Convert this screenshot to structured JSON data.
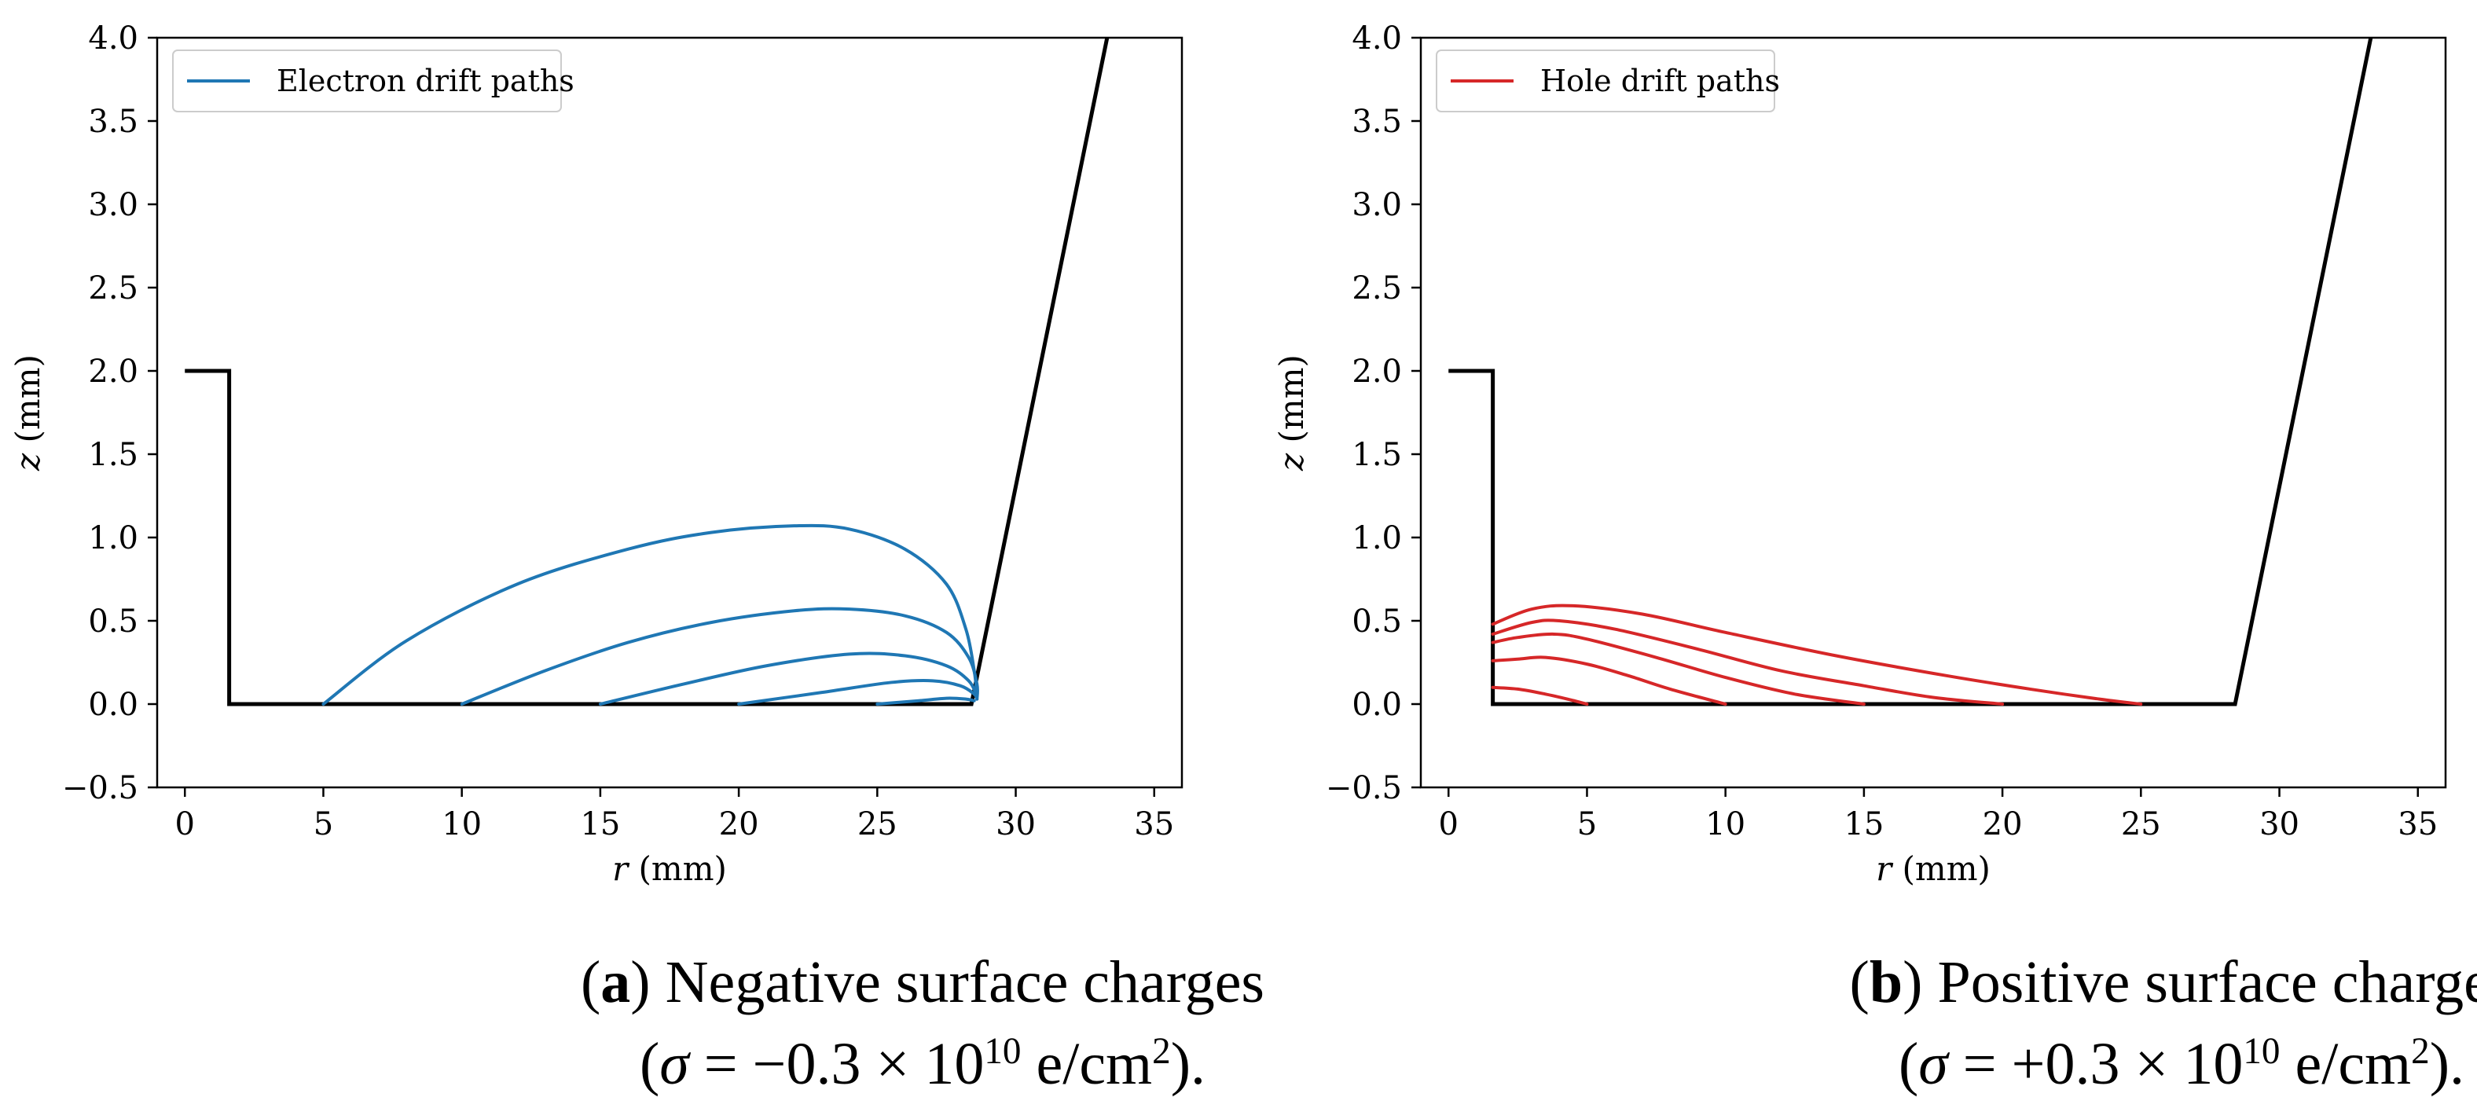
{
  "chart_data": [
    {
      "type": "line",
      "xlabel_var": "r",
      "xlabel_unit": "(mm)",
      "ylabel_var": "z",
      "ylabel_unit": "(mm)",
      "xlim": [
        -1,
        36
      ],
      "ylim": [
        -0.5,
        4.0
      ],
      "xticks": [
        0,
        5,
        10,
        15,
        20,
        25,
        30,
        35
      ],
      "yticks": [
        -0.5,
        0.0,
        0.5,
        1.0,
        1.5,
        2.0,
        2.5,
        3.0,
        3.5,
        4.0
      ],
      "ytick_labels": [
        "−0.5",
        "0.0",
        "0.5",
        "1.0",
        "1.5",
        "2.0",
        "2.5",
        "3.0",
        "3.5",
        "4.0"
      ],
      "grid": false,
      "legend": {
        "placement": "top-left",
        "entries": [
          {
            "label": "Electron drift paths",
            "color": "#1f77b4"
          }
        ]
      },
      "boundary": {
        "color": "#000000",
        "points": [
          [
            0,
            2.0
          ],
          [
            1.6,
            2.0
          ],
          [
            1.6,
            0.0
          ],
          [
            28.4,
            0.0
          ],
          [
            33.3,
            4.0
          ]
        ]
      },
      "series": [
        {
          "color": "#1f77b4",
          "points": [
            [
              5,
              0
            ],
            [
              8,
              0.38
            ],
            [
              12,
              0.72
            ],
            [
              16,
              0.93
            ],
            [
              19,
              1.03
            ],
            [
              22,
              1.07
            ],
            [
              24,
              1.05
            ],
            [
              26,
              0.93
            ],
            [
              27.5,
              0.72
            ],
            [
              28.2,
              0.45
            ],
            [
              28.5,
              0.2
            ],
            [
              28.6,
              0.05
            ]
          ]
        },
        {
          "color": "#1f77b4",
          "points": [
            [
              10,
              0
            ],
            [
              13,
              0.2
            ],
            [
              16,
              0.37
            ],
            [
              19,
              0.49
            ],
            [
              22,
              0.56
            ],
            [
              24,
              0.57
            ],
            [
              26,
              0.53
            ],
            [
              27.5,
              0.43
            ],
            [
              28.3,
              0.28
            ],
            [
              28.6,
              0.12
            ],
            [
              28.6,
              0.03
            ]
          ]
        },
        {
          "color": "#1f77b4",
          "points": [
            [
              15,
              0
            ],
            [
              18,
              0.12
            ],
            [
              21,
              0.23
            ],
            [
              24,
              0.3
            ],
            [
              26,
              0.29
            ],
            [
              27.5,
              0.23
            ],
            [
              28.3,
              0.14
            ],
            [
              28.6,
              0.05
            ]
          ]
        },
        {
          "color": "#1f77b4",
          "points": [
            [
              20,
              0
            ],
            [
              23,
              0.07
            ],
            [
              25.5,
              0.13
            ],
            [
              27,
              0.14
            ],
            [
              28,
              0.11
            ],
            [
              28.5,
              0.06
            ],
            [
              28.6,
              0.03
            ]
          ]
        },
        {
          "color": "#1f77b4",
          "points": [
            [
              25,
              0
            ],
            [
              26.5,
              0.02
            ],
            [
              27.5,
              0.035
            ],
            [
              28.2,
              0.03
            ],
            [
              28.5,
              0.02
            ]
          ]
        }
      ],
      "caption": {
        "letter": "a",
        "title": "Negative surface charges",
        "sigma_sign": "−",
        "sigma_value": "0.3 × 10",
        "exponent": "10",
        "unit": "e/cm",
        "unit_exponent": "2"
      }
    },
    {
      "type": "line",
      "xlabel_var": "r",
      "xlabel_unit": "(mm)",
      "ylabel_var": "z",
      "ylabel_unit": "(mm)",
      "xlim": [
        -1,
        36
      ],
      "ylim": [
        -0.5,
        4.0
      ],
      "xticks": [
        0,
        5,
        10,
        15,
        20,
        25,
        30,
        35
      ],
      "yticks": [
        -0.5,
        0.0,
        0.5,
        1.0,
        1.5,
        2.0,
        2.5,
        3.0,
        3.5,
        4.0
      ],
      "ytick_labels": [
        "−0.5",
        "0.0",
        "0.5",
        "1.0",
        "1.5",
        "2.0",
        "2.5",
        "3.0",
        "3.5",
        "4.0"
      ],
      "grid": false,
      "legend": {
        "placement": "top-left",
        "entries": [
          {
            "label": "Hole drift paths",
            "color": "#d62728"
          }
        ]
      },
      "boundary": {
        "color": "#000000",
        "points": [
          [
            0,
            2.0
          ],
          [
            1.6,
            2.0
          ],
          [
            1.6,
            0.0
          ],
          [
            28.4,
            0.0
          ],
          [
            33.3,
            4.0
          ]
        ]
      },
      "series": [
        {
          "color": "#d62728",
          "points": [
            [
              1.6,
              0.48
            ],
            [
              3,
              0.57
            ],
            [
              4.5,
              0.59
            ],
            [
              7,
              0.54
            ],
            [
              10,
              0.43
            ],
            [
              14,
              0.29
            ],
            [
              18,
              0.17
            ],
            [
              21,
              0.09
            ],
            [
              23.5,
              0.03
            ],
            [
              25,
              0.0
            ]
          ]
        },
        {
          "color": "#d62728",
          "points": [
            [
              1.6,
              0.42
            ],
            [
              3,
              0.49
            ],
            [
              4,
              0.5
            ],
            [
              6,
              0.45
            ],
            [
              9,
              0.33
            ],
            [
              12,
              0.2
            ],
            [
              15,
              0.11
            ],
            [
              17.5,
              0.04
            ],
            [
              20,
              0.0
            ]
          ]
        },
        {
          "color": "#d62728",
          "points": [
            [
              1.6,
              0.37
            ],
            [
              2.5,
              0.4
            ],
            [
              3.8,
              0.42
            ],
            [
              5,
              0.39
            ],
            [
              7.5,
              0.28
            ],
            [
              10,
              0.16
            ],
            [
              12.5,
              0.06
            ],
            [
              15,
              0.0
            ]
          ]
        },
        {
          "color": "#d62728",
          "points": [
            [
              1.6,
              0.26
            ],
            [
              2.5,
              0.27
            ],
            [
              3.5,
              0.28
            ],
            [
              5,
              0.24
            ],
            [
              6.5,
              0.17
            ],
            [
              8,
              0.09
            ],
            [
              10,
              0.0
            ]
          ]
        },
        {
          "color": "#d62728",
          "points": [
            [
              1.6,
              0.1
            ],
            [
              2.5,
              0.09
            ],
            [
              3.5,
              0.06
            ],
            [
              4.3,
              0.03
            ],
            [
              5,
              0.0
            ]
          ]
        }
      ],
      "caption": {
        "letter": "b",
        "title": "Positive surface charges",
        "sigma_sign": "+",
        "sigma_value": "0.3 × 10",
        "exponent": "10",
        "unit": "e/cm",
        "unit_exponent": "2"
      }
    }
  ]
}
